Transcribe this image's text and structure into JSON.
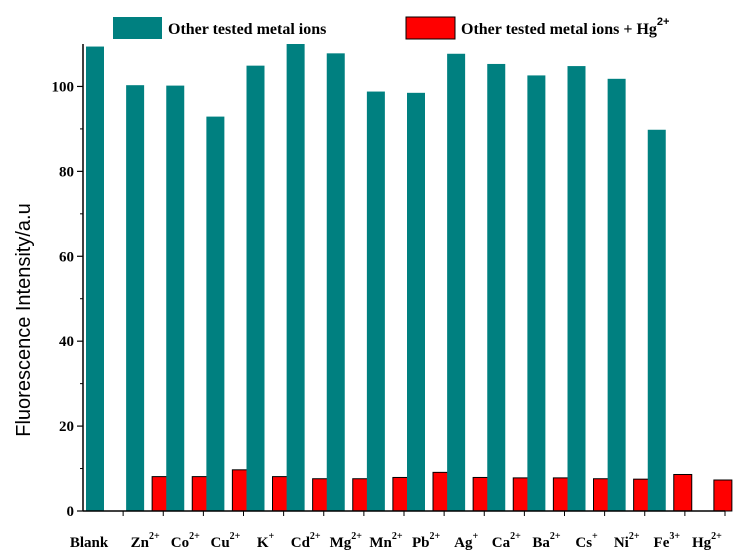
{
  "chart_data": {
    "type": "bar",
    "categories": [
      {
        "base": "Blank",
        "sup": ""
      },
      {
        "base": "Zn",
        "sup": "2+"
      },
      {
        "base": "Co",
        "sup": "2+"
      },
      {
        "base": "Cu",
        "sup": "2+"
      },
      {
        "base": "K",
        "sup": "+"
      },
      {
        "base": "Cd",
        "sup": "2+"
      },
      {
        "base": "Mg",
        "sup": "2+"
      },
      {
        "base": "Mn",
        "sup": "2+"
      },
      {
        "base": "Pb",
        "sup": "2+"
      },
      {
        "base": "Ag",
        "sup": "+"
      },
      {
        "base": "Ca",
        "sup": "2+"
      },
      {
        "base": "Ba",
        "sup": "2+"
      },
      {
        "base": "Cs",
        "sup": "+"
      },
      {
        "base": "Ni",
        "sup": "2+"
      },
      {
        "base": "Fe",
        "sup": "3+"
      },
      {
        "base": "Hg",
        "sup": "2+"
      }
    ],
    "series": [
      {
        "name": "Other tested metal ions",
        "color": "#008080",
        "values": [
          109.4,
          100.3,
          100.2,
          92.9,
          104.9,
          110.0,
          107.8,
          98.8,
          98.5,
          107.7,
          105.3,
          102.6,
          104.8,
          101.8,
          89.8,
          null
        ]
      },
      {
        "name": "Other tested metal ions + Hg",
        "name_sup": "2+",
        "color": "#ff0000",
        "values": [
          null,
          8.1,
          8.1,
          9.7,
          8.1,
          7.6,
          7.6,
          7.9,
          9.1,
          7.9,
          7.8,
          7.8,
          7.6,
          7.5,
          8.6,
          7.3
        ]
      }
    ],
    "xlabel": "",
    "ylabel": "Fluorescence Intensity/a.u",
    "ylim": [
      0,
      110
    ],
    "yticks": [
      "0",
      "20",
      "40",
      "60",
      "80",
      "100"
    ],
    "grid": false,
    "legend": "top"
  }
}
